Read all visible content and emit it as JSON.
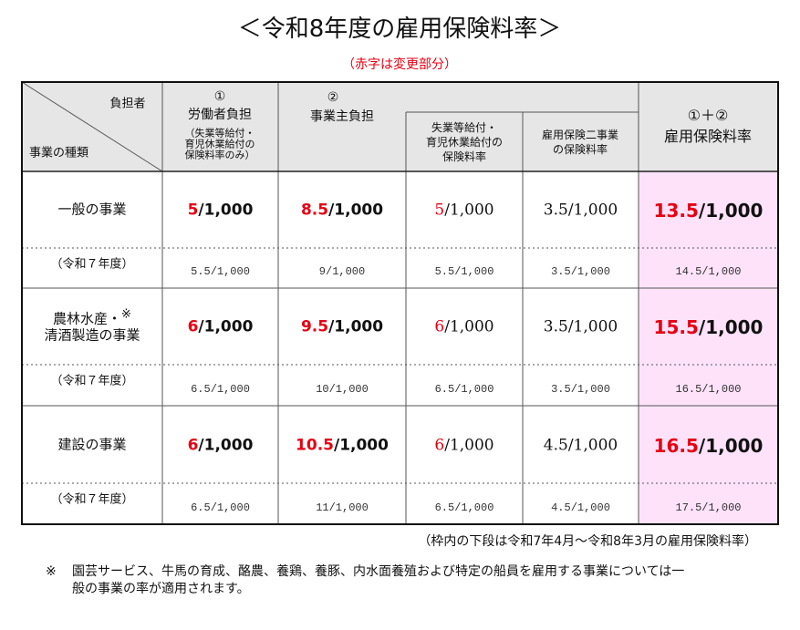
{
  "title": "＜令和8年度の雇用保険料率＞",
  "subtitle": "（赤字は変更部分）",
  "table": {
    "header": {
      "corner_top": "負担者",
      "corner_bottom": "事業の種類",
      "columns": [
        {
          "lines": [
            "①",
            "労働者負担"
          ],
          "note_lines": [
            "（失業等給付・",
            "育児休業給付の",
            "保険料率のみ）"
          ]
        },
        {
          "lines": [
            "②",
            "事業主負担"
          ]
        },
        {
          "lines": [
            "失業等給付・",
            "育児休業給付の",
            "保険料率"
          ]
        },
        {
          "lines": [
            "雇用保険二事業",
            "の保険料率"
          ]
        },
        {
          "lines": [
            "①＋②",
            "雇用保険料率"
          ]
        }
      ]
    },
    "rows": [
      {
        "label_lines": [
          "一般の事業"
        ],
        "current": [
          {
            "red": "5",
            "black": "/1,000"
          },
          {
            "red": "8.5",
            "black": "/1,000"
          },
          {
            "red": "5",
            "black": "/1,000"
          },
          {
            "black": "3.5/1,000"
          },
          {
            "red": "13.5",
            "black": "/1,000"
          }
        ],
        "previous_label": "（令和７年度）",
        "previous": [
          "5.5/1,000",
          "9/1,000",
          "5.5/1,000",
          "3.5/1,000",
          "14.5/1,000"
        ]
      },
      {
        "label_lines": [
          "農林水産・",
          "清酒製造の事業"
        ],
        "label_mark": "※",
        "current": [
          {
            "red": "6",
            "black": "/1,000"
          },
          {
            "red": "9.5",
            "black": "/1,000"
          },
          {
            "red": "6",
            "black": "/1,000"
          },
          {
            "black": "3.5/1,000"
          },
          {
            "red": "15.5",
            "black": "/1,000"
          }
        ],
        "previous_label": "（令和７年度）",
        "previous": [
          "6.5/1,000",
          "10/1,000",
          "6.5/1,000",
          "3.5/1,000",
          "16.5/1,000"
        ]
      },
      {
        "label_lines": [
          "建設の事業"
        ],
        "current": [
          {
            "red": "6",
            "black": "/1,000"
          },
          {
            "red": "10.5",
            "black": "/1,000"
          },
          {
            "red": "6",
            "black": "/1,000"
          },
          {
            "black": "4.5/1,000"
          },
          {
            "red": "16.5",
            "black": "/1,000"
          }
        ],
        "previous_label": "（令和７年度）",
        "previous": [
          "6.5/1,000",
          "11/1,000",
          "6.5/1,000",
          "4.5/1,000",
          "17.5/1,000"
        ]
      }
    ]
  },
  "footnote": "（枠内の下段は令和7年4月～令和8年3月の雇用保険料率）",
  "note": {
    "mark": "※",
    "lines": [
      "園芸サービス、牛馬の育成、酪農、養鶏、養豚、内水面養殖および特定の船員を雇用する事業については一",
      "般の事業の率が適用されます。"
    ]
  }
}
